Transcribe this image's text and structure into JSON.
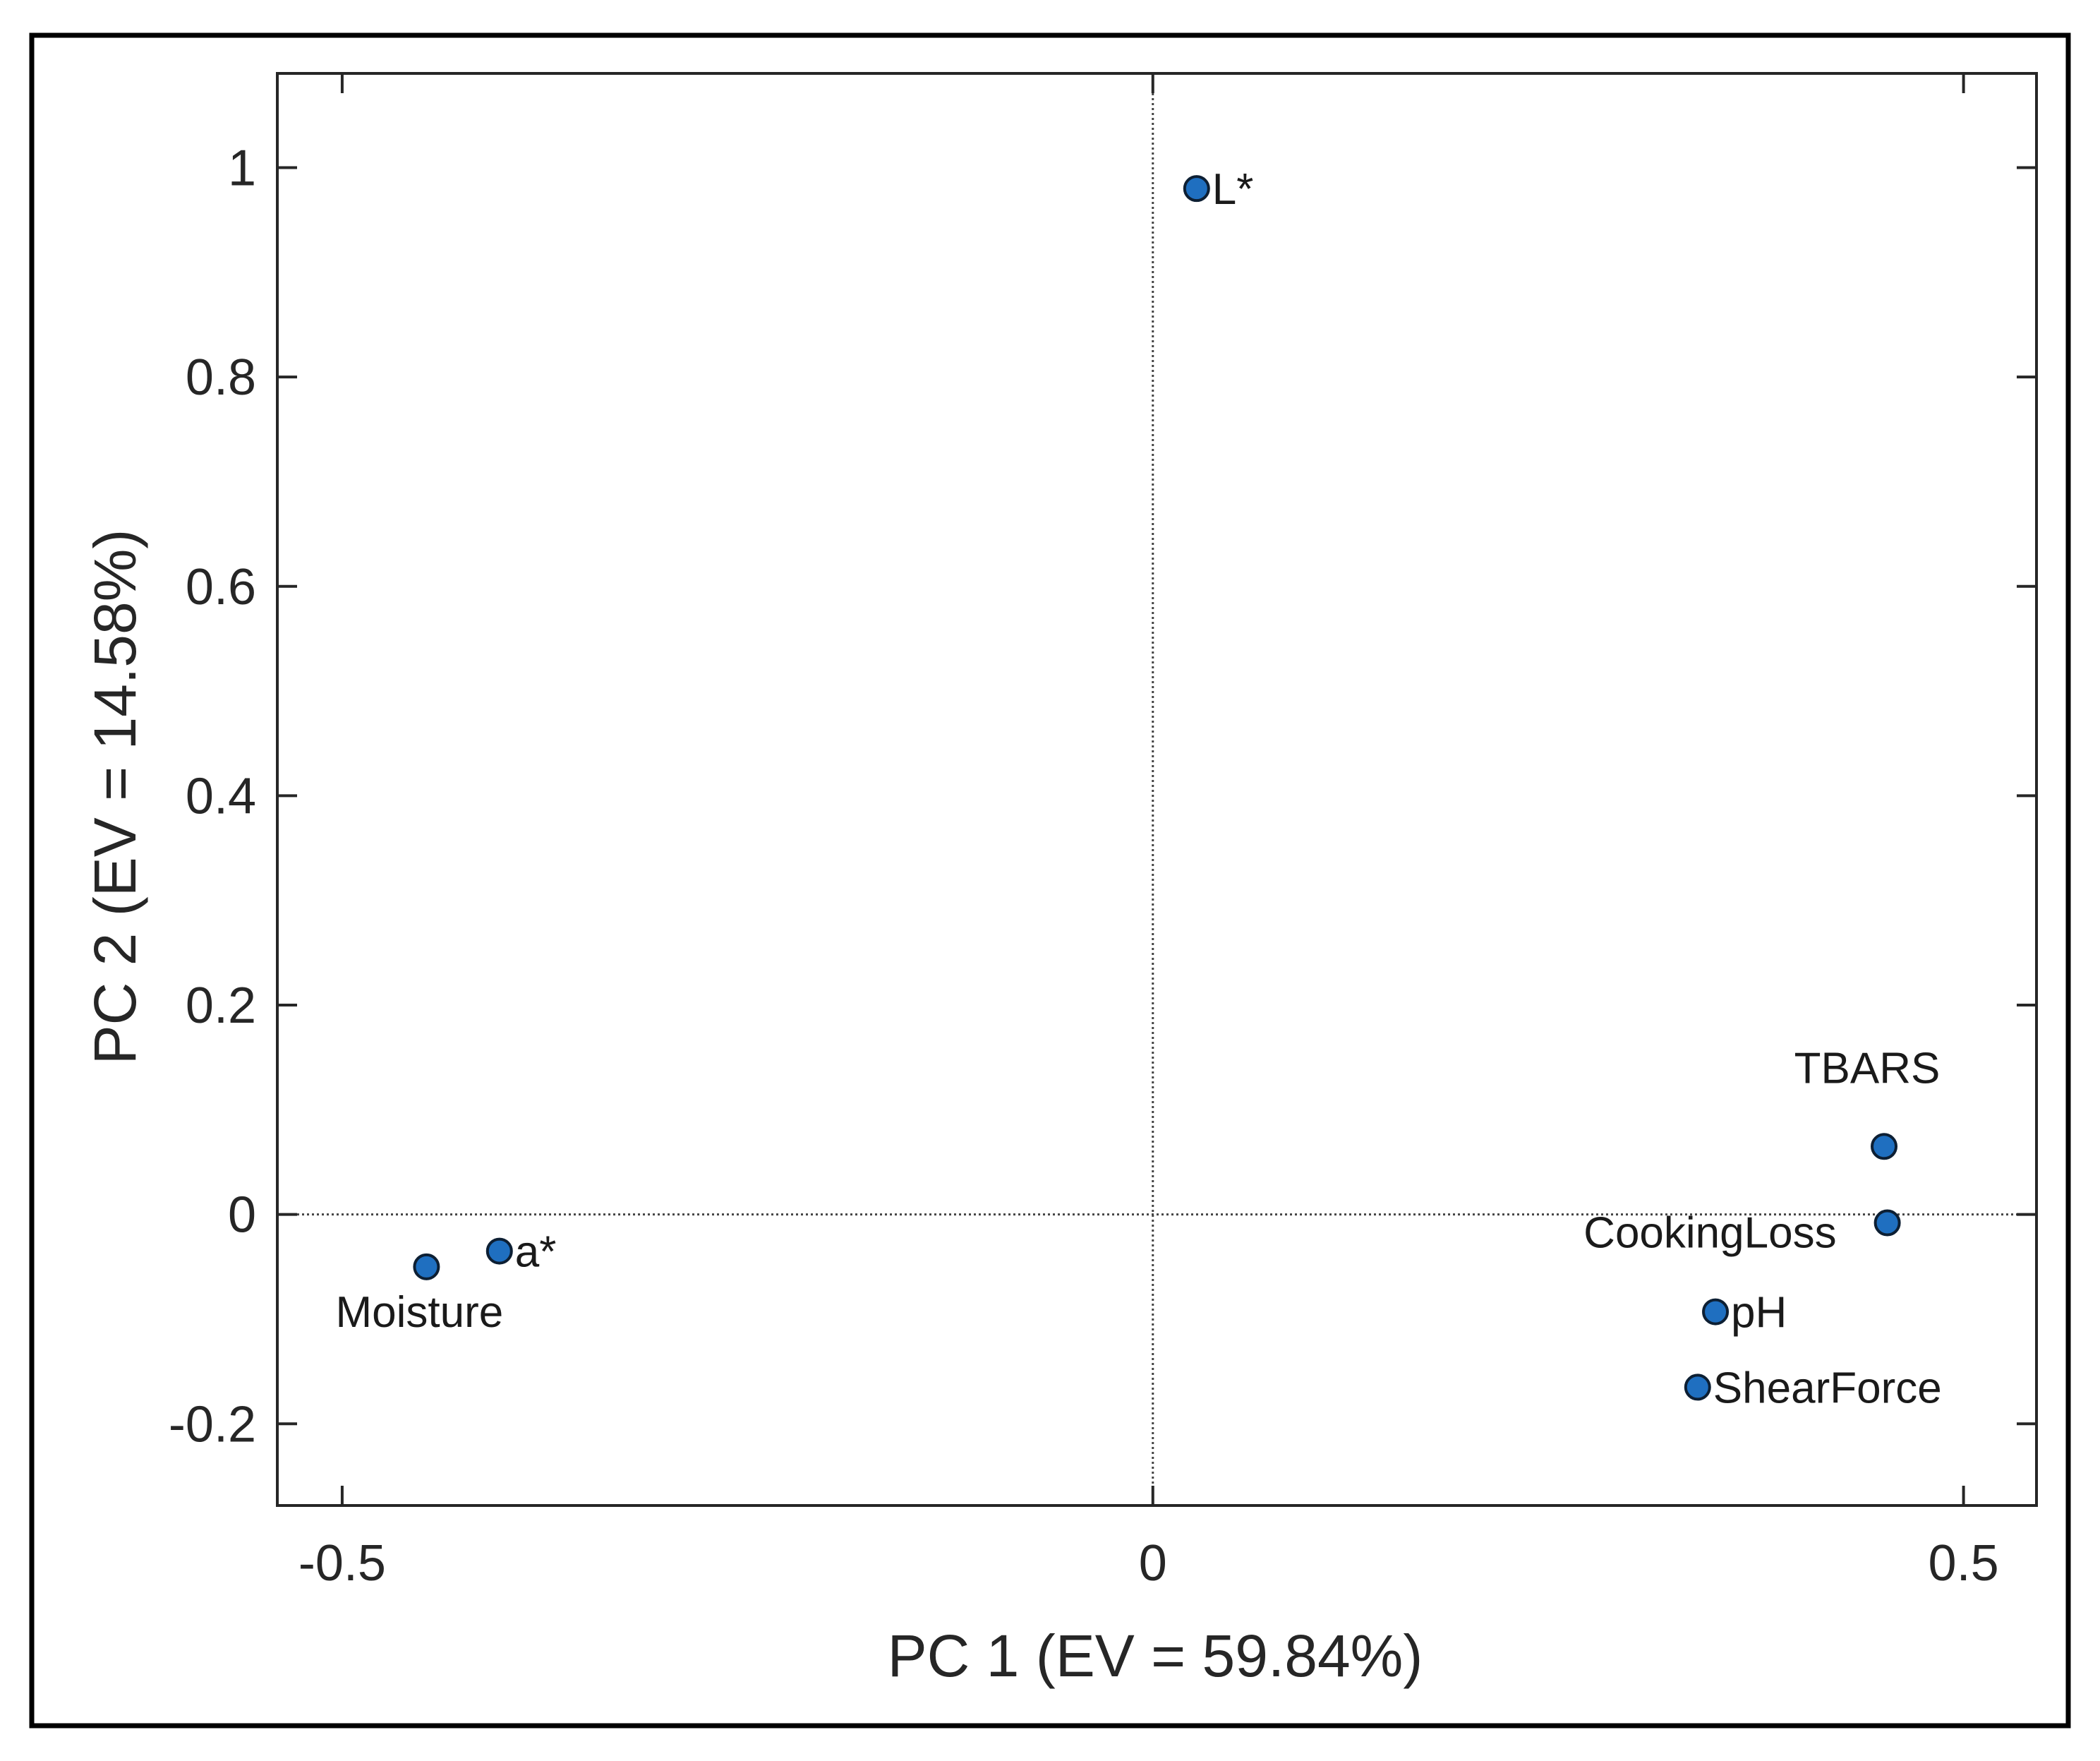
{
  "chart_data": {
    "type": "scatter",
    "title": "",
    "xlabel": "PC 1 (EV = 59.84%)",
    "ylabel": "PC 2 (EV = 14.58%)",
    "xlim": [
      -0.54,
      0.545
    ],
    "ylim": [
      -0.278,
      1.09
    ],
    "xticks": [
      -0.5,
      0,
      0.5
    ],
    "xtick_labels": [
      "-0.5",
      "0",
      "0.5"
    ],
    "yticks": [
      -0.2,
      0,
      0.2,
      0.4,
      0.6,
      0.8,
      1
    ],
    "ytick_labels": [
      "-0.2",
      "0",
      "0.2",
      "0.4",
      "0.6",
      "0.8",
      "1"
    ],
    "reference_lines": {
      "x": 0,
      "y": 0,
      "style": "dotted"
    },
    "grid": false,
    "marker_color": "#1f6fc0",
    "points": [
      {
        "label": "L*",
        "x": 0.027,
        "y": 0.98,
        "label_pos": "right"
      },
      {
        "label": "TBARS",
        "x": 0.451,
        "y": 0.065,
        "label_pos": "above-left"
      },
      {
        "label": "CookingLoss",
        "x": 0.453,
        "y": -0.008,
        "label_pos": "below-left"
      },
      {
        "label": "pH",
        "x": 0.347,
        "y": -0.093,
        "label_pos": "right"
      },
      {
        "label": "ShearForce",
        "x": 0.336,
        "y": -0.165,
        "label_pos": "right"
      },
      {
        "label": "a*",
        "x": -0.403,
        "y": -0.035,
        "label_pos": "right"
      },
      {
        "label": "Moisture",
        "x": -0.448,
        "y": -0.05,
        "label_pos": "below"
      }
    ]
  }
}
